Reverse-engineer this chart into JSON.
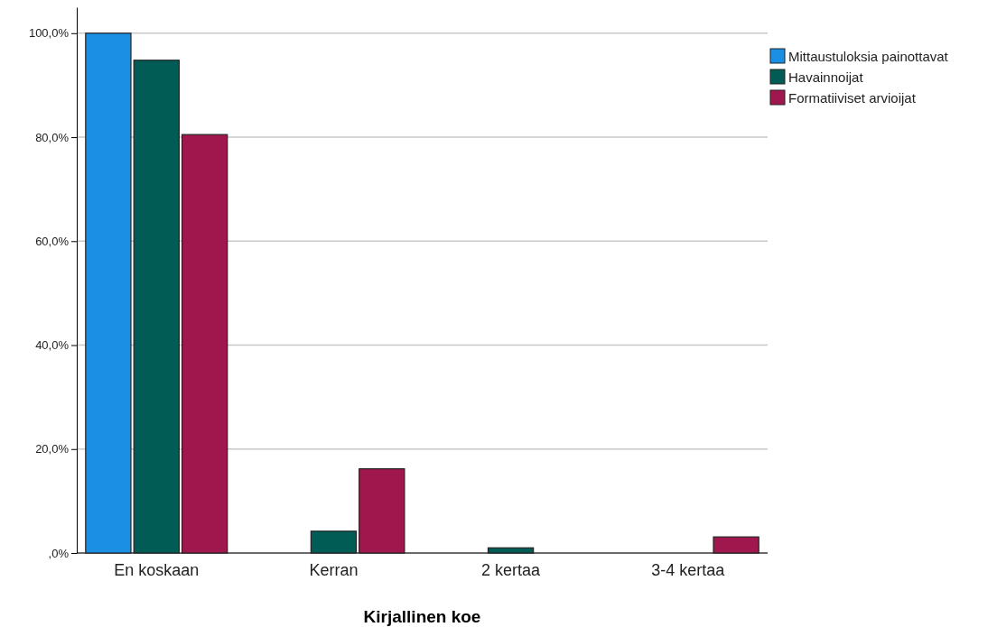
{
  "chart_data": {
    "type": "bar",
    "xlabel": "Kirjallinen koe",
    "categories": [
      "En koskaan",
      "Kerran",
      "2 kertaa",
      "3-4 kertaa"
    ],
    "series": [
      {
        "name": "Mittaustuloksia painottavat",
        "color": "#1a8fe3",
        "values": [
          100,
          0,
          0,
          0
        ]
      },
      {
        "name": "Havainnoijat",
        "color": "#005c55",
        "values": [
          94.8,
          4.2,
          1.0,
          0
        ]
      },
      {
        "name": "Formatiiviset arvioijat",
        "color": "#a0174e",
        "values": [
          80.5,
          16.2,
          0,
          3.1
        ]
      }
    ],
    "ylim": [
      0,
      105
    ],
    "yticks": [
      {
        "value": 0,
        "label": ",0%"
      },
      {
        "value": 20,
        "label": "20,0%"
      },
      {
        "value": 40,
        "label": "40,0%"
      },
      {
        "value": 60,
        "label": "60,0%"
      },
      {
        "value": 80,
        "label": "80,0%"
      },
      {
        "value": 100,
        "label": "100,0%"
      }
    ],
    "grid": "y",
    "legend": "top right"
  }
}
